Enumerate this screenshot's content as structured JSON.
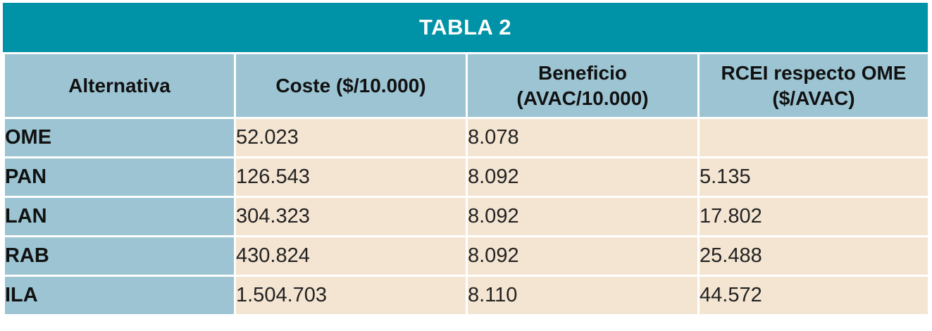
{
  "table": {
    "title": "TABLA 2",
    "headers": [
      {
        "line1": "Alternativa",
        "line2": ""
      },
      {
        "line1": "Coste ($/10.000)",
        "line2": ""
      },
      {
        "line1": "Beneficio",
        "line2": "(AVAC/10.000)"
      },
      {
        "line1": "RCEI respecto OME",
        "line2": "($/AVAC)"
      }
    ],
    "rows": [
      {
        "alternativa": "OME",
        "coste": "52.023",
        "beneficio": "8.078",
        "rcei": ""
      },
      {
        "alternativa": "PAN",
        "coste": "126.543",
        "beneficio": "8.092",
        "rcei": "5.135"
      },
      {
        "alternativa": "LAN",
        "coste": "304.323",
        "beneficio": "8.092",
        "rcei": "17.802"
      },
      {
        "alternativa": "RAB",
        "coste": "430.824",
        "beneficio": "8.092",
        "rcei": "25.488"
      },
      {
        "alternativa": "ILA",
        "coste": "1.504.703",
        "beneficio": "8.110",
        "rcei": "44.572"
      }
    ]
  },
  "colors": {
    "title_bg": "#0092a6",
    "header_bg": "#9cc4d3",
    "cell_bg": "#f4e5d2"
  }
}
